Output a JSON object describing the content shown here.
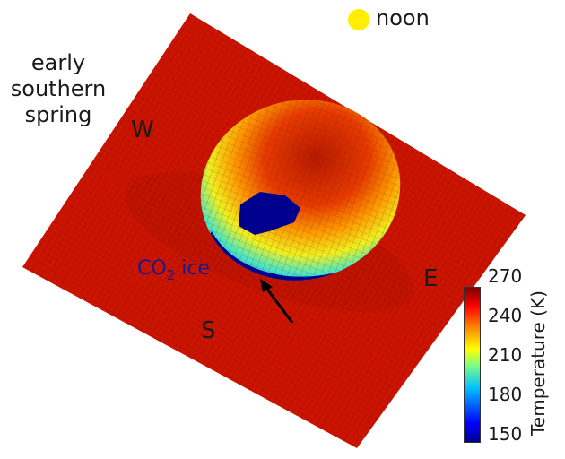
{
  "chart_data": {
    "type": "heatmap",
    "subtype": "3D surface temperature map (crater/dome topography)",
    "title": "",
    "annotations": {
      "season": "early southern spring",
      "time_of_day": "noon",
      "sun_marker_color": "#ffee00",
      "directions": [
        "W",
        "E",
        "S"
      ],
      "feature_label": "CO2 ice",
      "arrow": "points to CO2 ice at south-facing rim"
    },
    "colorbar": {
      "label": "Temperature (K)",
      "ticks": [
        150,
        180,
        210,
        240,
        270
      ],
      "range": [
        150,
        285
      ],
      "colormap": "jet"
    },
    "regions": [
      {
        "name": "flat surrounding plain",
        "approx_temperature_K": 275
      },
      {
        "name": "sunlit east-facing dome slope",
        "approx_temperature_K": 265
      },
      {
        "name": "north dome flank",
        "approx_temperature_K": 240
      },
      {
        "name": "shaded south-west slope",
        "approx_temperature_K": 200
      },
      {
        "name": "CO2 ice patch on slope",
        "approx_temperature_K": 150
      },
      {
        "name": "CO2 ice at southern rim",
        "approx_temperature_K": 150
      }
    ]
  },
  "labels": {
    "season_line1": "early",
    "season_line2": "southern",
    "season_line3": "spring",
    "noon": "noon",
    "west": "W",
    "east": "E",
    "south": "S",
    "co2_prefix": "CO",
    "co2_sub": "2",
    "co2_suffix": " ice",
    "cbar_title": "Temperature (K)",
    "tick_270": "270",
    "tick_240": "240",
    "tick_210": "210",
    "tick_180": "180",
    "tick_150": "150"
  }
}
